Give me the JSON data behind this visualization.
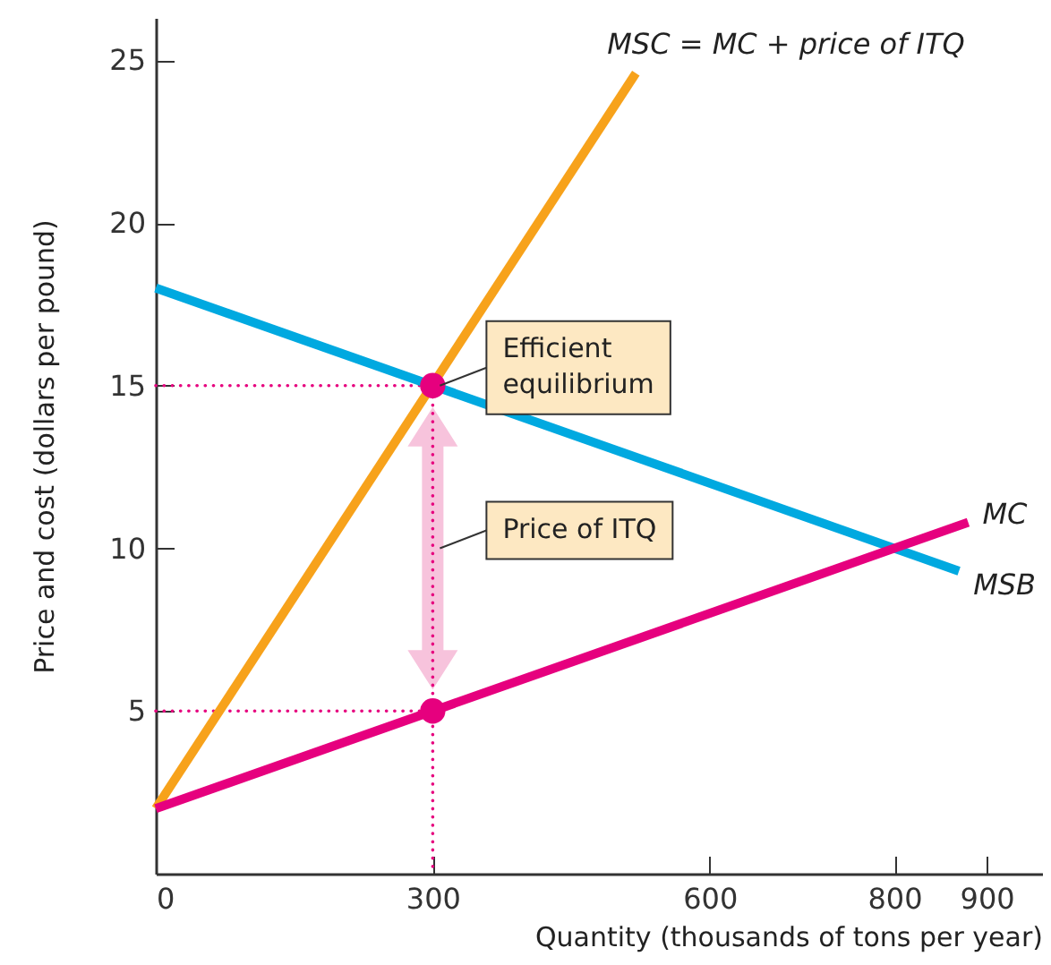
{
  "chart_data": {
    "type": "line",
    "xlabel": "Quantity (thousands of tons per year)",
    "ylabel": "Price and cost (dollars per pound)",
    "xlim": [
      0,
      960
    ],
    "ylim": [
      0,
      26.3
    ],
    "xticks": [
      0,
      300,
      600,
      800,
      900
    ],
    "yticks": [
      5,
      10,
      15,
      20,
      25
    ],
    "grid": false,
    "series": [
      {
        "type": "line",
        "line_style": "dotted",
        "color": "#e6007e",
        "x": [
          0,
          300,
          300
        ],
        "values": [
          15,
          15,
          0
        ]
      },
      {
        "type": "line",
        "line_style": "dotted",
        "color": "#e6007e",
        "x": [
          0,
          300
        ],
        "values": [
          5,
          5
        ]
      },
      {
        "type": "line",
        "name": "MSC = MC + price of ITQ",
        "color": "#f7a21b",
        "x": [
          0,
          520
        ],
        "values": [
          2,
          24.6
        ]
      },
      {
        "type": "line",
        "name": "MSB",
        "color": "#00a9e0",
        "x": [
          0,
          870
        ],
        "values": [
          18,
          9.3
        ]
      },
      {
        "type": "line",
        "name": "MC",
        "color": "#e6007e",
        "x": [
          0,
          880
        ],
        "values": [
          2,
          10.8
        ]
      },
      {
        "type": "scatter",
        "marker": "circle",
        "color": "#e6007e",
        "x": [
          300,
          300
        ],
        "values": [
          15,
          5
        ]
      }
    ],
    "annotations": [
      {
        "text": "Efficient equilibrium",
        "x": 300,
        "y": 15
      },
      {
        "text": "Price of ITQ",
        "x": 300,
        "y": 10
      }
    ]
  }
}
